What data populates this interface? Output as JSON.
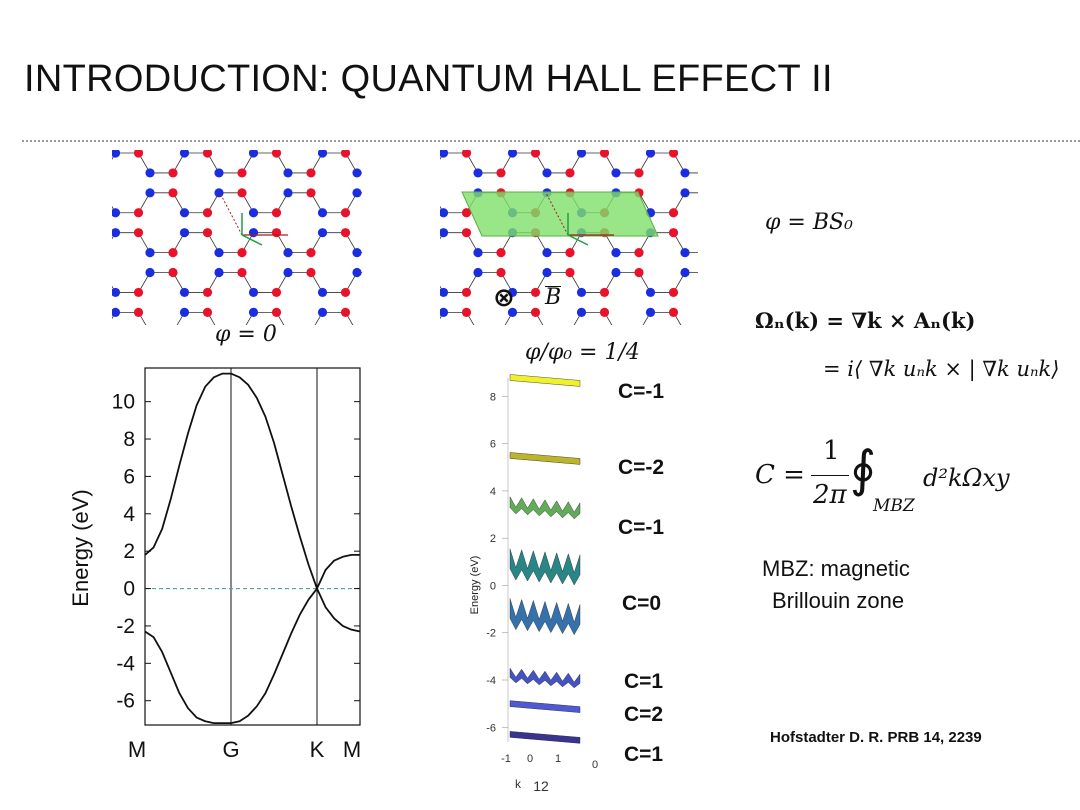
{
  "slide": {
    "title": "INTRODUCTION: QUANTUM HALL EFFECT II"
  },
  "lattice_left": {
    "label": "φ = 0"
  },
  "lattice_right": {
    "label": "φ/φ₀ = 1/4",
    "field_symbol": "⊗",
    "field_label": "B"
  },
  "equations": {
    "flux": "φ = BS₀",
    "berry_line1": "Ωₙ(k) = ∇k × Aₙ(k)",
    "berry_line2": "= i⟨ ∇k uₙk × | ∇k uₙk⟩",
    "chern_lhs": "C =",
    "chern_num": "1",
    "chern_den": "2π",
    "chern_integral": "∮",
    "chern_sub": "MBZ",
    "chern_integrand": "d²kΩxy"
  },
  "notes": {
    "mbz_line1": "MBZ: magnetic",
    "mbz_line2": "Brillouin zone",
    "reference": "Hofstadter D. R. PRB 14, 2239"
  },
  "chern_labels": [
    "C=-1",
    "C=-2",
    "C=-1",
    "C=0",
    "C=1",
    "C=2",
    "C=1"
  ],
  "colors": {
    "site_a": "#e8132a",
    "site_b": "#1a2ee0",
    "magnetic_cell": "#7ee06a",
    "band_line": "#111111",
    "fermi_line": "#4aa89a"
  },
  "chart_data": [
    {
      "type": "line",
      "title": "",
      "xlabel": "",
      "ylabel": "Energy (eV)",
      "ylim": [
        -7.3,
        11.8
      ],
      "yticks": [
        10,
        8,
        6,
        4,
        2,
        0,
        -2,
        -4,
        -6
      ],
      "x_ticks": [
        "M",
        "G",
        "K",
        "M"
      ],
      "x_positions": [
        0,
        1,
        2,
        2.5
      ],
      "series": [
        {
          "name": "",
          "x": [
            0,
            0.1,
            0.2,
            0.3,
            0.4,
            0.5,
            0.6,
            0.7,
            0.8,
            0.9,
            1.0,
            1.1,
            1.2,
            1.3,
            1.4,
            1.5,
            1.6,
            1.7,
            1.8,
            1.9,
            2.0,
            2.1,
            2.2,
            2.3,
            2.4,
            2.5
          ],
          "values": [
            1.8,
            2.2,
            3.2,
            4.8,
            6.6,
            8.3,
            9.8,
            10.8,
            11.3,
            11.5,
            11.5,
            11.3,
            10.9,
            10.2,
            9.2,
            7.8,
            6.1,
            4.4,
            2.8,
            1.3,
            0.0,
            1.0,
            1.5,
            1.7,
            1.8,
            1.8
          ]
        },
        {
          "name": "",
          "x": [
            0,
            0.1,
            0.2,
            0.3,
            0.4,
            0.5,
            0.6,
            0.7,
            0.8,
            0.9,
            1.0,
            1.1,
            1.2,
            1.3,
            1.4,
            1.5,
            1.6,
            1.7,
            1.8,
            1.9,
            2.0,
            2.1,
            2.2,
            2.3,
            2.4,
            2.5
          ],
          "values": [
            -2.3,
            -2.6,
            -3.4,
            -4.5,
            -5.6,
            -6.4,
            -6.9,
            -7.1,
            -7.2,
            -7.2,
            -7.2,
            -7.1,
            -6.8,
            -6.3,
            -5.6,
            -4.6,
            -3.5,
            -2.4,
            -1.4,
            -0.6,
            0.0,
            -1.0,
            -1.6,
            -2.0,
            -2.2,
            -2.3
          ]
        }
      ],
      "fermi_level": 0,
      "vertical_lines": [
        1,
        2
      ]
    },
    {
      "type": "area",
      "title": "",
      "ylabel": "Energy (eV)",
      "xlabel": "k",
      "ylim": [
        -6.2,
        9.2
      ],
      "yticks": [
        8,
        6,
        4,
        2,
        0,
        -2,
        -4,
        -6
      ],
      "x_ticks": [
        "-1",
        "0",
        "1"
      ],
      "x_ticks_right": [
        "0"
      ],
      "k_index": "12",
      "bands": [
        {
          "center": 8.8,
          "width": 0.15,
          "color": "#f0f020",
          "peaks": 0
        },
        {
          "center": 5.5,
          "width": 0.2,
          "color": "#b8b020",
          "peaks": 0
        },
        {
          "center": 3.4,
          "width": 0.7,
          "color": "#5aa850",
          "peaks": 6
        },
        {
          "center": 0.9,
          "width": 1.3,
          "color": "#1e7f80",
          "peaks": 6
        },
        {
          "center": -1.2,
          "width": 1.3,
          "color": "#2a6aa8",
          "peaks": 6
        },
        {
          "center": -3.8,
          "width": 0.6,
          "color": "#3a4ac0",
          "peaks": 6
        },
        {
          "center": -5.0,
          "width": 0.2,
          "color": "#4450d0",
          "peaks": 0
        },
        {
          "center": -6.3,
          "width": 0.15,
          "color": "#2d2a8a",
          "peaks": 0
        }
      ]
    }
  ]
}
